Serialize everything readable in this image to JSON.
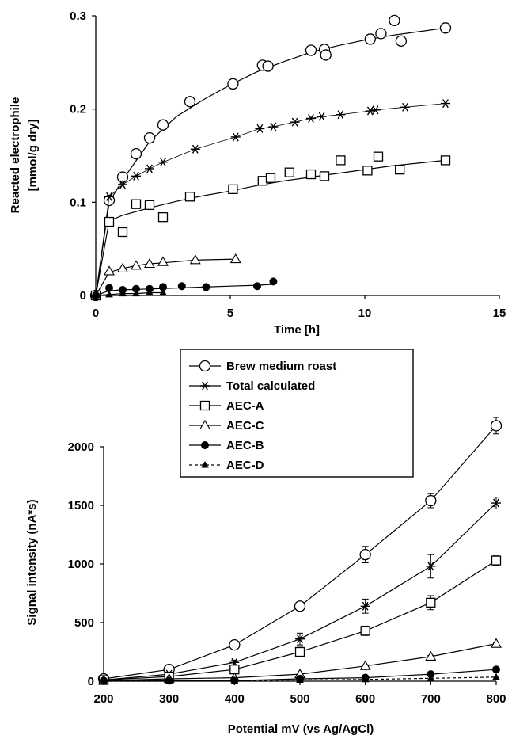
{
  "chart_data": [
    {
      "type": "scatter",
      "title": "",
      "xlabel": "Time [h]",
      "ylabel_lines": [
        "Reacted electrophile",
        "[mmol/g dry]"
      ],
      "xlim": [
        0,
        15
      ],
      "ylim": [
        0,
        0.3
      ],
      "x_ticks": [
        0,
        5,
        10,
        15
      ],
      "y_ticks": [
        0,
        0.1,
        0.2,
        0.3
      ],
      "x_tick_labels": [
        "0",
        "5",
        "10",
        "15"
      ],
      "y_tick_labels": [
        "0",
        "0.1",
        "0.2",
        "0.3"
      ],
      "grid": false,
      "series": [
        {
          "name": "Brew medium roast",
          "marker": "circle-open",
          "points": [
            [
              0,
              0
            ],
            [
              0.5,
              0.102
            ],
            [
              1,
              0.127
            ],
            [
              1.5,
              0.152
            ],
            [
              2,
              0.169
            ],
            [
              2.5,
              0.183
            ],
            [
              3.5,
              0.208
            ],
            [
              5.1,
              0.227
            ],
            [
              6.2,
              0.247
            ],
            [
              6.4,
              0.246
            ],
            [
              8,
              0.263
            ],
            [
              8.5,
              0.264
            ],
            [
              8.55,
              0.258
            ],
            [
              10.2,
              0.275
            ],
            [
              10.6,
              0.281
            ],
            [
              11.1,
              0.295
            ],
            [
              11.35,
              0.273
            ],
            [
              13,
              0.287
            ]
          ],
          "fit": [
            [
              0,
              0
            ],
            [
              0.5,
              0.1
            ],
            [
              1,
              0.124
            ],
            [
              2,
              0.165
            ],
            [
              3,
              0.192
            ],
            [
              4,
              0.21
            ],
            [
              5,
              0.226
            ],
            [
              6,
              0.24
            ],
            [
              7,
              0.251
            ],
            [
              8,
              0.261
            ],
            [
              9,
              0.268
            ],
            [
              10,
              0.274
            ],
            [
              11,
              0.279
            ],
            [
              12,
              0.283
            ],
            [
              13,
              0.287
            ]
          ]
        },
        {
          "name": "Total calculated",
          "marker": "asterisk",
          "points": [
            [
              0,
              0
            ],
            [
              0.5,
              0.106
            ],
            [
              1,
              0.119
            ],
            [
              1.5,
              0.128
            ],
            [
              2,
              0.136
            ],
            [
              2.5,
              0.143
            ],
            [
              3.7,
              0.157
            ],
            [
              5.2,
              0.17
            ],
            [
              6.1,
              0.179
            ],
            [
              6.6,
              0.181
            ],
            [
              7.4,
              0.186
            ],
            [
              8,
              0.19
            ],
            [
              8.4,
              0.192
            ],
            [
              9.1,
              0.194
            ],
            [
              10.2,
              0.198
            ],
            [
              10.4,
              0.199
            ],
            [
              11.5,
              0.202
            ],
            [
              13,
              0.206
            ]
          ]
        },
        {
          "name": "AEC-A",
          "marker": "square-open",
          "points": [
            [
              0,
              0
            ],
            [
              0.5,
              0.079
            ],
            [
              1,
              0.068
            ],
            [
              1.5,
              0.098
            ],
            [
              2,
              0.097
            ],
            [
              2.5,
              0.084
            ],
            [
              3.5,
              0.106
            ],
            [
              5.1,
              0.114
            ],
            [
              6.2,
              0.123
            ],
            [
              6.5,
              0.126
            ],
            [
              7.2,
              0.132
            ],
            [
              8,
              0.13
            ],
            [
              8.5,
              0.128
            ],
            [
              9.1,
              0.145
            ],
            [
              10.1,
              0.134
            ],
            [
              10.5,
              0.149
            ],
            [
              11.3,
              0.135
            ],
            [
              13,
              0.145
            ]
          ],
          "fit": [
            [
              0,
              0
            ],
            [
              0.5,
              0.08
            ],
            [
              1,
              0.086
            ],
            [
              2,
              0.094
            ],
            [
              3,
              0.101
            ],
            [
              4,
              0.107
            ],
            [
              5,
              0.112
            ],
            [
              6,
              0.118
            ],
            [
              7,
              0.123
            ],
            [
              8,
              0.127
            ],
            [
              9,
              0.131
            ],
            [
              10,
              0.135
            ],
            [
              11,
              0.139
            ],
            [
              12,
              0.142
            ],
            [
              13,
              0.145
            ]
          ]
        },
        {
          "name": "AEC-C",
          "marker": "triangle-open",
          "points": [
            [
              0,
              0
            ],
            [
              0.5,
              0.026
            ],
            [
              1,
              0.029
            ],
            [
              1.5,
              0.032
            ],
            [
              2,
              0.034
            ],
            [
              2.5,
              0.036
            ],
            [
              3.7,
              0.038
            ],
            [
              5.2,
              0.039
            ]
          ],
          "fit": [
            [
              0,
              0
            ],
            [
              0.5,
              0.025
            ],
            [
              1,
              0.029
            ],
            [
              1.5,
              0.032
            ],
            [
              2,
              0.034
            ],
            [
              2.5,
              0.035
            ],
            [
              3.7,
              0.038
            ],
            [
              5.2,
              0.039
            ]
          ]
        },
        {
          "name": "AEC-B",
          "marker": "circle-filled",
          "points": [
            [
              0,
              0
            ],
            [
              0.5,
              0.008
            ],
            [
              1,
              0.006
            ],
            [
              1.5,
              0.007
            ],
            [
              2,
              0.007
            ],
            [
              2.5,
              0.009
            ],
            [
              3.2,
              0.01
            ],
            [
              4.1,
              0.009
            ],
            [
              6,
              0.01
            ],
            [
              6.6,
              0.015
            ]
          ],
          "fit": [
            [
              0,
              0
            ],
            [
              0.5,
              0.005
            ],
            [
              1,
              0.006
            ],
            [
              2,
              0.007
            ],
            [
              3,
              0.008
            ],
            [
              4,
              0.009
            ],
            [
              5,
              0.01
            ],
            [
              6,
              0.011
            ],
            [
              6.6,
              0.012
            ]
          ]
        },
        {
          "name": "AEC-D",
          "marker": "triangle-filled",
          "points": [
            [
              0,
              0
            ],
            [
              0.5,
              0.001
            ],
            [
              1,
              0.002
            ],
            [
              1.5,
              0.002
            ],
            [
              2,
              0.003
            ],
            [
              2.5,
              0.003
            ]
          ]
        }
      ]
    },
    {
      "type": "line",
      "title": "",
      "xlabel": "Potential mV (vs Ag/AgCl)",
      "ylabel": "Signal intensity (nA*s)",
      "xlim": [
        200,
        800
      ],
      "ylim": [
        0,
        2000
      ],
      "x_ticks": [
        200,
        300,
        400,
        500,
        600,
        700,
        800
      ],
      "y_ticks": [
        0,
        500,
        1000,
        1500,
        2000
      ],
      "x_tick_labels": [
        "200",
        "300",
        "400",
        "500",
        "600",
        "700",
        "800"
      ],
      "y_tick_labels": [
        "0",
        "500",
        "1000",
        "1500",
        "2000"
      ],
      "grid": false,
      "x": [
        200,
        300,
        400,
        500,
        600,
        700,
        800
      ],
      "series": [
        {
          "name": "Brew medium roast",
          "marker": "circle-open",
          "values": [
            20,
            100,
            310,
            640,
            1080,
            1540,
            2180
          ],
          "errors": [
            0,
            0,
            20,
            30,
            70,
            60,
            70
          ]
        },
        {
          "name": "Total calculated",
          "marker": "asterisk",
          "values": [
            10,
            60,
            160,
            360,
            640,
            980,
            1520
          ],
          "errors": [
            0,
            10,
            20,
            50,
            60,
            100,
            50
          ]
        },
        {
          "name": "AEC-A",
          "marker": "square-open",
          "values": [
            10,
            40,
            100,
            250,
            430,
            670,
            1030
          ],
          "errors": [
            0,
            10,
            20,
            40,
            40,
            60,
            40
          ]
        },
        {
          "name": "AEC-C",
          "marker": "triangle-open",
          "values": [
            5,
            20,
            30,
            60,
            130,
            210,
            320
          ],
          "errors": [
            0,
            0,
            0,
            10,
            10,
            10,
            10
          ]
        },
        {
          "name": "AEC-B",
          "marker": "circle-filled",
          "values": [
            5,
            5,
            5,
            20,
            30,
            60,
            100
          ],
          "errors": [
            0,
            0,
            0,
            0,
            0,
            0,
            0
          ]
        },
        {
          "name": "AEC-D",
          "marker": "triangle-filled",
          "values": [
            0,
            0,
            5,
            10,
            15,
            25,
            35
          ],
          "errors": [
            0,
            0,
            0,
            0,
            0,
            0,
            0
          ]
        }
      ]
    }
  ],
  "legend": {
    "placement": "top-center",
    "entries": [
      {
        "label": "Brew medium roast",
        "marker": "circle-open",
        "line": "solid"
      },
      {
        "label": "Total calculated",
        "marker": "asterisk",
        "line": "solid"
      },
      {
        "label": "AEC-A",
        "marker": "square-open",
        "line": "solid"
      },
      {
        "label": "AEC-C",
        "marker": "triangle-open",
        "line": "solid"
      },
      {
        "label": "AEC-B",
        "marker": "circle-filled",
        "line": "solid"
      },
      {
        "label": "AEC-D",
        "marker": "triangle-filled",
        "line": "dashed"
      }
    ]
  }
}
